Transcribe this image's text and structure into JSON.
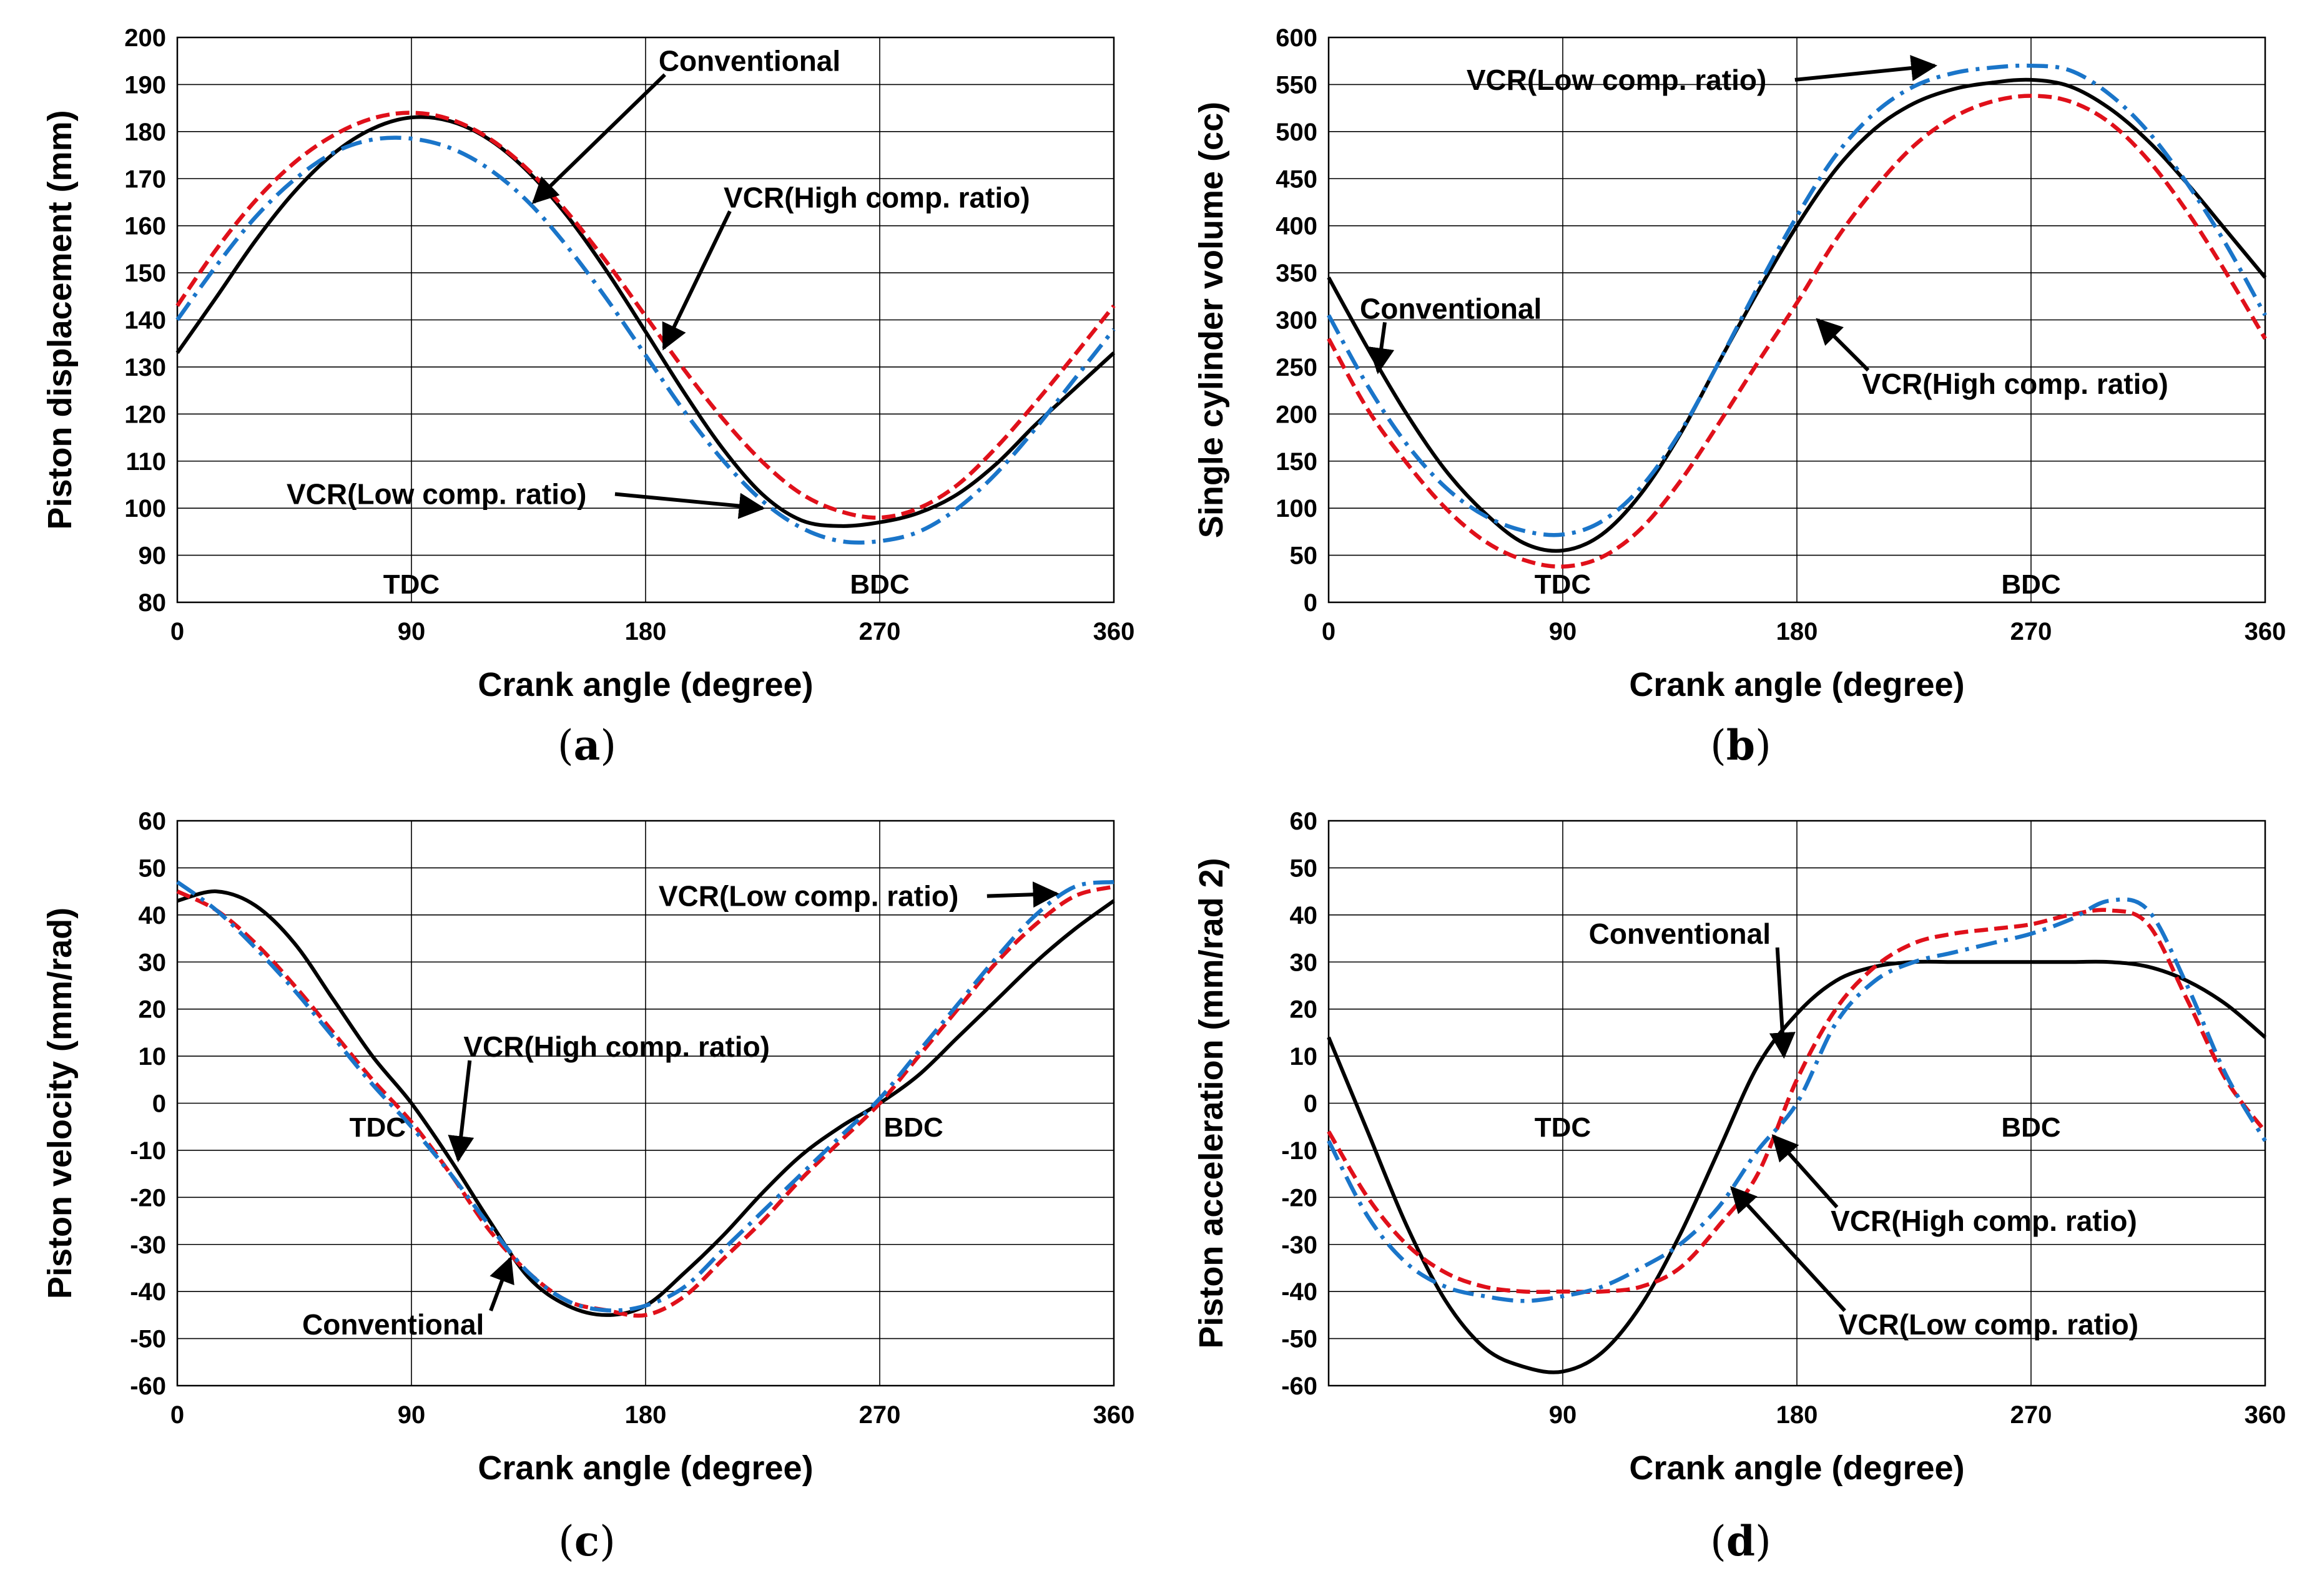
{
  "captions": [
    "a",
    "b",
    "c",
    "d"
  ],
  "colors": {
    "conventional": "#000000",
    "vcr_high": "#e0101a",
    "vcr_low": "#1a75c9",
    "grid": "#000000"
  },
  "chart_data": [
    {
      "type": "line",
      "xlabel": "Crank angle (degree)",
      "ylabel": "Piston displacement (mm)",
      "xlim": [
        0,
        360
      ],
      "ylim": [
        80,
        200
      ],
      "xticks": [
        0,
        90,
        180,
        270,
        360
      ],
      "yticks": [
        80,
        90,
        100,
        110,
        120,
        130,
        140,
        150,
        160,
        170,
        180,
        190,
        200
      ],
      "grid": true,
      "markers": [
        {
          "text": "TDC",
          "x": 90,
          "y": 84
        },
        {
          "text": "BDC",
          "x": 270,
          "y": 84
        }
      ],
      "annotations": [
        {
          "text": "Conventional",
          "x": 185,
          "y": 195,
          "anchor": "start",
          "arrow_to": [
            137,
            165
          ]
        },
        {
          "text": "VCR(High comp. ratio)",
          "x": 210,
          "y": 166,
          "anchor": "start",
          "arrow_to": [
            187,
            134
          ]
        },
        {
          "text": "VCR(Low comp. ratio)",
          "x": 42,
          "y": 103,
          "anchor": "start",
          "arrow_to": [
            225,
            100
          ]
        }
      ],
      "series": [
        {
          "key": "conventional",
          "style": "solid",
          "x": [
            0,
            15,
            30,
            45,
            60,
            75,
            90,
            105,
            120,
            135,
            150,
            165,
            180,
            195,
            210,
            225,
            240,
            255,
            270,
            285,
            300,
            315,
            330,
            345,
            360
          ],
          "values": [
            133,
            144.8,
            156.8,
            167.2,
            175.3,
            180.6,
            183,
            182.2,
            178.3,
            171.4,
            162,
            150.4,
            137.5,
            124.4,
            112.4,
            102.9,
            97.4,
            96.2,
            97,
            99,
            103,
            109.5,
            117.8,
            125.4,
            133
          ]
        },
        {
          "key": "vcr_high",
          "style": "dashed",
          "x": [
            0,
            15,
            30,
            45,
            60,
            75,
            90,
            105,
            120,
            135,
            150,
            165,
            180,
            195,
            210,
            225,
            240,
            255,
            270,
            285,
            300,
            315,
            330,
            345,
            360
          ],
          "values": [
            143,
            155,
            165.3,
            173.4,
            179.2,
            182.8,
            184,
            182.6,
            178.5,
            171.8,
            162.8,
            152.3,
            140.8,
            129.3,
            118.8,
            109.8,
            103,
            99.3,
            98,
            100,
            105,
            113,
            122.5,
            132.6,
            143
          ]
        },
        {
          "key": "vcr_low",
          "style": "dashdot",
          "x": [
            0,
            15,
            30,
            45,
            60,
            75,
            90,
            105,
            120,
            135,
            150,
            165,
            180,
            195,
            210,
            225,
            240,
            255,
            270,
            285,
            300,
            315,
            330,
            345,
            360
          ],
          "values": [
            140,
            151.5,
            161.8,
            169.8,
            175.5,
            178.3,
            178.5,
            176.5,
            172,
            165,
            155.5,
            144.5,
            132.5,
            120.5,
            110,
            101.5,
            95.8,
            93,
            93,
            95,
            100,
            107.5,
            117,
            127.5,
            138
          ]
        }
      ]
    },
    {
      "type": "line",
      "xlabel": "Crank angle (degree)",
      "ylabel": "Single cylinder volume (cc)",
      "xlim": [
        0,
        360
      ],
      "ylim": [
        0,
        600
      ],
      "xticks": [
        0,
        90,
        180,
        270,
        360
      ],
      "yticks": [
        0,
        50,
        100,
        150,
        200,
        250,
        300,
        350,
        400,
        450,
        500,
        550,
        600
      ],
      "grid": true,
      "markers": [
        {
          "text": "TDC",
          "x": 90,
          "y": 20
        },
        {
          "text": "BDC",
          "x": 270,
          "y": 20
        }
      ],
      "annotations": [
        {
          "text": "VCR(Low comp. ratio)",
          "x": 53,
          "y": 555,
          "anchor": "start",
          "arrow_to": [
            233,
            570
          ]
        },
        {
          "text": "Conventional",
          "x": 12,
          "y": 312,
          "anchor": "start",
          "arrow_to": [
            19,
            245
          ]
        },
        {
          "text": "VCR(High comp. ratio)",
          "x": 205,
          "y": 232,
          "anchor": "start",
          "arrow_to": [
            188,
            300
          ]
        }
      ],
      "series": [
        {
          "key": "conventional",
          "style": "solid",
          "x": [
            0,
            15,
            30,
            45,
            60,
            75,
            90,
            105,
            120,
            135,
            150,
            165,
            180,
            195,
            210,
            225,
            240,
            255,
            270,
            285,
            300,
            315,
            330,
            345,
            360
          ],
          "values": [
            345,
            270,
            200,
            140,
            95,
            63,
            55,
            72,
            115,
            178,
            255,
            330,
            400,
            460,
            503,
            530,
            545,
            552,
            555,
            548,
            525,
            490,
            445,
            395,
            345
          ]
        },
        {
          "key": "vcr_high",
          "style": "dashed",
          "x": [
            0,
            15,
            30,
            45,
            60,
            75,
            90,
            105,
            120,
            135,
            150,
            165,
            180,
            195,
            210,
            225,
            240,
            255,
            270,
            285,
            300,
            315,
            330,
            345,
            360
          ],
          "values": [
            280,
            205,
            148,
            100,
            65,
            45,
            38,
            48,
            78,
            128,
            190,
            255,
            318,
            385,
            440,
            485,
            515,
            532,
            538,
            532,
            510,
            470,
            415,
            350,
            280
          ]
        },
        {
          "key": "vcr_low",
          "style": "dashdot",
          "x": [
            0,
            15,
            30,
            45,
            60,
            75,
            90,
            105,
            120,
            135,
            150,
            165,
            180,
            195,
            210,
            225,
            240,
            255,
            270,
            285,
            300,
            315,
            330,
            345,
            360
          ],
          "values": [
            305,
            230,
            168,
            122,
            92,
            76,
            72,
            86,
            122,
            180,
            255,
            335,
            410,
            475,
            520,
            548,
            562,
            568,
            570,
            565,
            540,
            500,
            445,
            380,
            305
          ]
        }
      ]
    },
    {
      "type": "line",
      "xlabel": "Crank angle (degree)",
      "ylabel": "Piston velocity (mm/rad)",
      "xlim": [
        0,
        360
      ],
      "ylim": [
        -60,
        60
      ],
      "xticks": [
        0,
        90,
        180,
        270,
        360
      ],
      "yticks": [
        -60,
        -50,
        -40,
        -30,
        -20,
        -10,
        0,
        10,
        20,
        30,
        40,
        50,
        60
      ],
      "grid": true,
      "markers": [
        {
          "text": "TDC",
          "x": 77,
          "y": -5
        },
        {
          "text": "BDC",
          "x": 283,
          "y": -5
        }
      ],
      "annotations": [
        {
          "text": "VCR(Low comp. ratio)",
          "x": 185,
          "y": 44,
          "anchor": "start",
          "arrow_to": [
            338,
            44.5
          ]
        },
        {
          "text": "VCR(High comp. ratio)",
          "x": 110,
          "y": 12,
          "anchor": "start",
          "arrow_to": [
            108,
            -12
          ]
        },
        {
          "text": "Conventional",
          "x": 48,
          "y": -47,
          "anchor": "start",
          "arrow_to": [
            128,
            -33
          ]
        }
      ],
      "series": [
        {
          "key": "conventional",
          "style": "solid",
          "x": [
            0,
            15,
            30,
            45,
            60,
            75,
            90,
            105,
            120,
            135,
            150,
            165,
            180,
            195,
            210,
            225,
            240,
            255,
            270,
            285,
            300,
            315,
            330,
            345,
            360
          ],
          "values": [
            43,
            45,
            42,
            34,
            22,
            10,
            0,
            -12,
            -25,
            -37,
            -43,
            -45,
            -43,
            -36,
            -28,
            -19,
            -11,
            -5,
            0,
            6,
            14,
            22,
            30,
            37,
            43
          ]
        },
        {
          "key": "vcr_high",
          "style": "dashed",
          "x": [
            0,
            15,
            30,
            45,
            60,
            75,
            90,
            105,
            120,
            135,
            150,
            165,
            180,
            195,
            210,
            225,
            240,
            255,
            270,
            285,
            300,
            315,
            330,
            345,
            360
          ],
          "values": [
            45,
            41,
            34,
            25,
            15,
            5,
            -4,
            -15,
            -27,
            -36,
            -42,
            -44,
            -45,
            -41,
            -33,
            -25,
            -16,
            -8,
            0,
            10,
            20,
            30,
            38,
            44,
            46
          ]
        },
        {
          "key": "vcr_low",
          "style": "dashdot",
          "x": [
            0,
            15,
            30,
            45,
            60,
            75,
            90,
            105,
            120,
            135,
            150,
            165,
            180,
            195,
            210,
            225,
            240,
            255,
            270,
            285,
            300,
            315,
            330,
            345,
            360
          ],
          "values": [
            47,
            41,
            33,
            24,
            14,
            4,
            -5,
            -15,
            -26,
            -36,
            -42,
            -44,
            -43,
            -39,
            -31,
            -23,
            -15,
            -7,
            1,
            11,
            21,
            31,
            40,
            46,
            47
          ]
        }
      ]
    },
    {
      "type": "line",
      "xlabel": "Crank angle (degree)",
      "ylabel": "Piston acceleration (mm/rad 2)",
      "xlim": [
        0,
        360
      ],
      "ylim": [
        -60,
        60
      ],
      "xticks": [
        90,
        180,
        270,
        360
      ],
      "yticks": [
        -60,
        -50,
        -40,
        -30,
        -20,
        -10,
        0,
        10,
        20,
        30,
        40,
        50,
        60
      ],
      "grid": true,
      "markers": [
        {
          "text": "TDC",
          "x": 90,
          "y": -5
        },
        {
          "text": "BDC",
          "x": 270,
          "y": -5
        }
      ],
      "annotations": [
        {
          "text": "Conventional",
          "x": 100,
          "y": 36,
          "anchor": "start",
          "arrow_to": [
            175,
            10
          ]
        },
        {
          "text": "VCR(High comp. ratio)",
          "x": 193,
          "y": -25,
          "anchor": "start",
          "arrow_to": [
            171,
            -7
          ]
        },
        {
          "text": "VCR(Low comp. ratio)",
          "x": 196,
          "y": -47,
          "anchor": "start",
          "arrow_to": [
            155,
            -18
          ]
        }
      ],
      "series": [
        {
          "key": "conventional",
          "style": "solid",
          "x": [
            0,
            15,
            30,
            45,
            60,
            75,
            90,
            105,
            120,
            135,
            150,
            165,
            180,
            195,
            210,
            225,
            240,
            255,
            270,
            285,
            300,
            315,
            330,
            345,
            360
          ],
          "values": [
            14,
            -6,
            -26,
            -42,
            -52,
            -56,
            -57,
            -53,
            -43,
            -28,
            -10,
            8,
            19,
            26,
            29,
            30,
            30,
            30,
            30,
            30,
            30,
            29,
            26,
            21,
            14
          ]
        },
        {
          "key": "vcr_high",
          "style": "dashed",
          "x": [
            0,
            15,
            30,
            45,
            60,
            75,
            90,
            105,
            120,
            135,
            150,
            165,
            180,
            195,
            210,
            225,
            240,
            255,
            270,
            285,
            300,
            315,
            330,
            345,
            360
          ],
          "values": [
            -6,
            -20,
            -30,
            -36,
            -39,
            -40,
            -40,
            -40,
            -39,
            -35,
            -26,
            -15,
            5,
            20,
            29,
            34,
            36,
            37,
            38,
            40,
            41,
            38,
            22,
            5,
            -6
          ]
        },
        {
          "key": "vcr_low",
          "style": "dashdot",
          "x": [
            0,
            15,
            30,
            45,
            60,
            75,
            90,
            105,
            120,
            135,
            150,
            165,
            180,
            195,
            210,
            225,
            240,
            255,
            270,
            285,
            300,
            315,
            330,
            345,
            360
          ],
          "values": [
            -8,
            -24,
            -34,
            -39,
            -41,
            -42,
            -41,
            -39,
            -35,
            -30,
            -22,
            -10,
            0,
            17,
            26,
            30,
            32,
            34,
            36,
            39,
            43,
            41,
            25,
            6,
            -8
          ]
        }
      ]
    }
  ]
}
